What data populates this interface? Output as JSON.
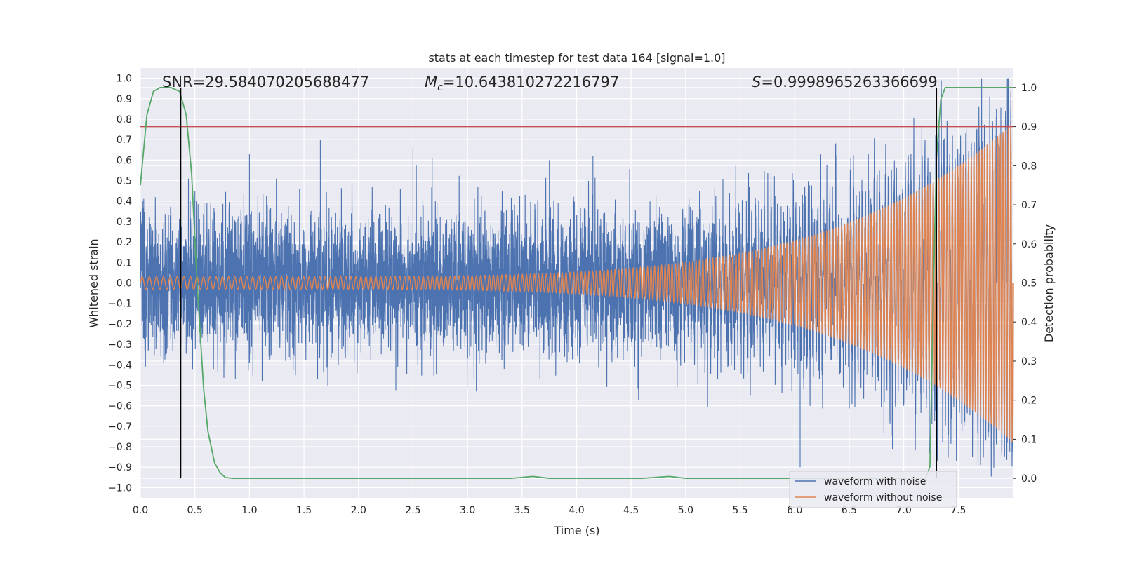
{
  "chart_data": {
    "type": "line",
    "title": "stats at each timestep for test data 164 [signal=1.0]",
    "xlabel": "Time (s)",
    "ylabel": "Whitened strain",
    "y2label": "Detection probability",
    "xlim": [
      0.0,
      8.0
    ],
    "ylim": [
      -1.05,
      1.05
    ],
    "y2lim": [
      -0.05,
      1.05
    ],
    "xticks": [
      "0.0",
      "0.5",
      "1.0",
      "1.5",
      "2.0",
      "2.5",
      "3.0",
      "3.5",
      "4.0",
      "4.5",
      "5.0",
      "5.5",
      "6.0",
      "6.5",
      "7.0",
      "7.5"
    ],
    "yticks": [
      "1.0",
      "0.9",
      "0.8",
      "0.7",
      "0.6",
      "0.5",
      "0.4",
      "0.3",
      "0.2",
      "0.1",
      "0.0",
      "−0.1",
      "−0.2",
      "−0.3",
      "−0.4",
      "−0.5",
      "−0.6",
      "−0.7",
      "−0.8",
      "−0.9",
      "−1.0"
    ],
    "y2ticks": [
      "1.0",
      "0.9",
      "0.8",
      "0.7",
      "0.6",
      "0.5",
      "0.4",
      "0.3",
      "0.2",
      "0.1",
      "0.0"
    ],
    "stats": {
      "snr": "SNR=29.584070205688477",
      "mc_symbol": "M",
      "mc_sub": "c",
      "mc_value": "=10.643810272216797",
      "s_symbol": "S",
      "s_value": "=0.9998965263366699"
    },
    "threshold": 0.9,
    "vlines": [
      0.37,
      7.3
    ],
    "series": [
      {
        "name": "waveform with noise",
        "color": "#4c72b0",
        "noise_std": 0.17,
        "notable_peaks": [
          [
            0.5,
            0.45
          ],
          [
            1.0,
            0.63
          ],
          [
            1.65,
            0.7
          ],
          [
            2.5,
            0.66
          ],
          [
            3.75,
            0.6
          ],
          [
            4.15,
            0.62
          ],
          [
            6.05,
            -0.9
          ],
          [
            7.85,
            0.85
          ],
          [
            7.95,
            1.0
          ]
        ]
      },
      {
        "name": "waveform without noise",
        "color": "#dd8452",
        "start_freq_hz": 15,
        "start_amp": 0.03,
        "end_amp": 0.78
      },
      {
        "name": "detection probability",
        "color": "#55a868",
        "axis": "right",
        "points": [
          [
            0.0,
            0.75
          ],
          [
            0.06,
            0.93
          ],
          [
            0.12,
            0.99
          ],
          [
            0.18,
            1.0
          ],
          [
            0.28,
            1.0
          ],
          [
            0.36,
            0.99
          ],
          [
            0.42,
            0.93
          ],
          [
            0.47,
            0.78
          ],
          [
            0.52,
            0.5
          ],
          [
            0.58,
            0.23
          ],
          [
            0.62,
            0.12
          ],
          [
            0.68,
            0.04
          ],
          [
            0.73,
            0.015
          ],
          [
            0.78,
            0.002
          ],
          [
            0.85,
            0.0
          ],
          [
            3.4,
            0.0
          ],
          [
            3.6,
            0.005
          ],
          [
            3.75,
            0.0
          ],
          [
            4.6,
            0.0
          ],
          [
            4.85,
            0.005
          ],
          [
            5.0,
            0.0
          ],
          [
            7.2,
            0.0
          ],
          [
            7.24,
            0.03
          ],
          [
            7.27,
            0.45
          ],
          [
            7.3,
            0.82
          ],
          [
            7.34,
            0.97
          ],
          [
            7.38,
            1.0
          ],
          [
            8.0,
            1.0
          ]
        ]
      }
    ],
    "legend": {
      "placement": "lower-right",
      "entries": [
        {
          "label": "waveform with noise",
          "color": "#4c72b0"
        },
        {
          "label": "waveform without noise",
          "color": "#dd8452"
        }
      ]
    }
  },
  "colors": {
    "plot_bg": "#eaeaf2",
    "grid": "#ffffff",
    "threshold": "#c44e52",
    "vline": "#000000"
  }
}
